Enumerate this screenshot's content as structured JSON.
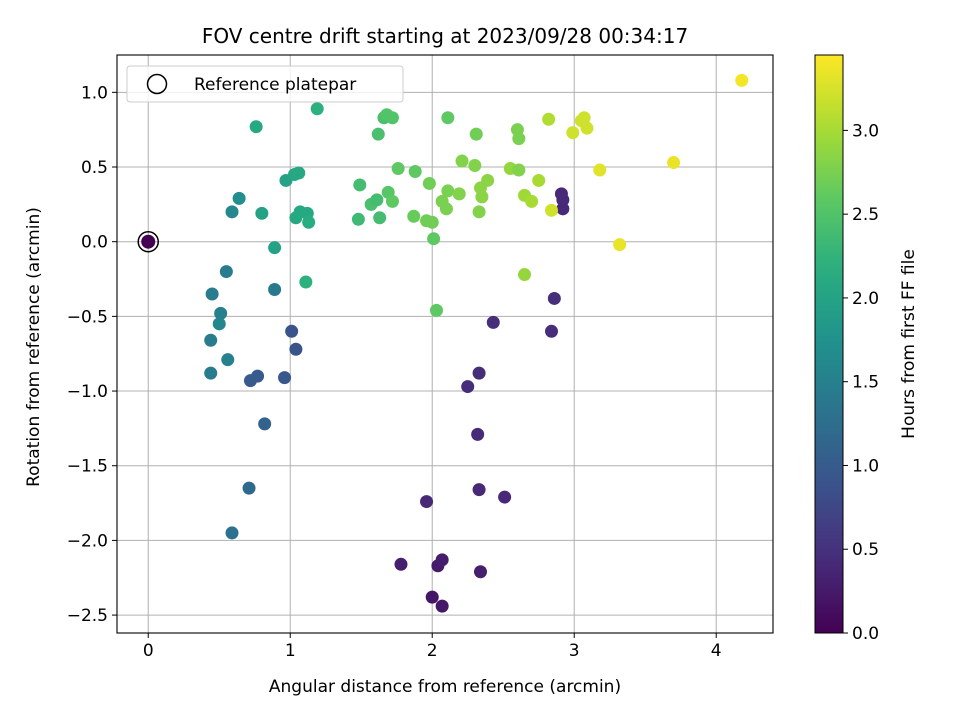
{
  "chart_data": {
    "type": "scatter",
    "title": "FOV centre drift starting at 2023/09/28 00:34:17",
    "xlabel": "Angular distance from reference (arcmin)",
    "ylabel": "Rotation from reference (arcmin)",
    "xlim": [
      -0.22,
      4.4
    ],
    "ylim": [
      -2.62,
      1.25
    ],
    "xticks": [
      0,
      1,
      2,
      3,
      4
    ],
    "yticks": [
      -2.5,
      -2.0,
      -1.5,
      -1.0,
      -0.5,
      0.0,
      0.5,
      1.0
    ],
    "grid": true,
    "legend": {
      "placement": "top-left",
      "entries": [
        "Reference platepar"
      ]
    },
    "reference_point": {
      "x": 0,
      "y": 0,
      "hours": 0
    },
    "colorbar": {
      "label": "Hours from first FF file",
      "range": [
        0,
        3.45
      ],
      "ticks": [
        0.0,
        0.5,
        1.0,
        1.5,
        2.0,
        2.5,
        3.0
      ],
      "colormap": "viridis"
    },
    "points": [
      {
        "x": 2.0,
        "y": -2.38,
        "h": 0.2
      },
      {
        "x": 2.07,
        "y": -2.44,
        "h": 0.22
      },
      {
        "x": 2.04,
        "y": -2.17,
        "h": 0.25
      },
      {
        "x": 2.07,
        "y": -2.13,
        "h": 0.27
      },
      {
        "x": 1.78,
        "y": -2.16,
        "h": 0.3
      },
      {
        "x": 2.34,
        "y": -2.21,
        "h": 0.3
      },
      {
        "x": 1.96,
        "y": -1.74,
        "h": 0.4
      },
      {
        "x": 2.33,
        "y": -1.66,
        "h": 0.4
      },
      {
        "x": 2.51,
        "y": -1.71,
        "h": 0.4
      },
      {
        "x": 2.32,
        "y": -1.29,
        "h": 0.42
      },
      {
        "x": 2.25,
        "y": -0.97,
        "h": 0.45
      },
      {
        "x": 2.33,
        "y": -0.88,
        "h": 0.45
      },
      {
        "x": 2.43,
        "y": -0.54,
        "h": 0.45
      },
      {
        "x": 2.84,
        "y": -0.6,
        "h": 0.45
      },
      {
        "x": 2.86,
        "y": -0.38,
        "h": 0.45
      },
      {
        "x": 2.91,
        "y": 0.32,
        "h": 0.4
      },
      {
        "x": 2.92,
        "y": 0.28,
        "h": 0.42
      },
      {
        "x": 2.92,
        "y": 0.22,
        "h": 0.4
      },
      {
        "x": 1.04,
        "y": -0.72,
        "h": 0.9
      },
      {
        "x": 1.01,
        "y": -0.6,
        "h": 0.9
      },
      {
        "x": 0.96,
        "y": -0.91,
        "h": 0.95
      },
      {
        "x": 0.77,
        "y": -0.9,
        "h": 1.0
      },
      {
        "x": 0.72,
        "y": -0.93,
        "h": 1.0
      },
      {
        "x": 0.82,
        "y": -1.22,
        "h": 1.1
      },
      {
        "x": 0.71,
        "y": -1.65,
        "h": 1.2
      },
      {
        "x": 0.59,
        "y": -1.95,
        "h": 1.3
      },
      {
        "x": 0.89,
        "y": -0.32,
        "h": 1.4
      },
      {
        "x": 0.56,
        "y": -0.79,
        "h": 1.5
      },
      {
        "x": 0.44,
        "y": -0.88,
        "h": 1.45
      },
      {
        "x": 0.44,
        "y": -0.66,
        "h": 1.45
      },
      {
        "x": 0.5,
        "y": -0.55,
        "h": 1.6
      },
      {
        "x": 0.51,
        "y": -0.48,
        "h": 1.5
      },
      {
        "x": 0.45,
        "y": -0.35,
        "h": 1.45
      },
      {
        "x": 0.55,
        "y": -0.2,
        "h": 1.45
      },
      {
        "x": 0.59,
        "y": 0.2,
        "h": 1.6
      },
      {
        "x": 0.64,
        "y": 0.29,
        "h": 1.7
      },
      {
        "x": 0.8,
        "y": 0.19,
        "h": 2.0
      },
      {
        "x": 0.89,
        "y": -0.04,
        "h": 2.0
      },
      {
        "x": 0.97,
        "y": 0.41,
        "h": 2.0
      },
      {
        "x": 1.03,
        "y": 0.45,
        "h": 2.05
      },
      {
        "x": 1.06,
        "y": 0.46,
        "h": 2.1
      },
      {
        "x": 1.04,
        "y": 0.16,
        "h": 2.1
      },
      {
        "x": 1.07,
        "y": 0.2,
        "h": 2.1
      },
      {
        "x": 1.12,
        "y": 0.19,
        "h": 2.1
      },
      {
        "x": 1.13,
        "y": 0.13,
        "h": 2.15
      },
      {
        "x": 1.11,
        "y": -0.27,
        "h": 2.2
      },
      {
        "x": 0.76,
        "y": 0.77,
        "h": 2.1
      },
      {
        "x": 1.19,
        "y": 0.89,
        "h": 2.2
      },
      {
        "x": 1.48,
        "y": 0.15,
        "h": 2.35
      },
      {
        "x": 1.49,
        "y": 0.38,
        "h": 2.4
      },
      {
        "x": 1.57,
        "y": 0.25,
        "h": 2.45
      },
      {
        "x": 1.61,
        "y": 0.28,
        "h": 2.4
      },
      {
        "x": 1.63,
        "y": 0.16,
        "h": 2.4
      },
      {
        "x": 1.62,
        "y": 0.72,
        "h": 2.45
      },
      {
        "x": 1.66,
        "y": 0.83,
        "h": 2.45
      },
      {
        "x": 1.68,
        "y": 0.85,
        "h": 2.5
      },
      {
        "x": 1.72,
        "y": 0.83,
        "h": 2.5
      },
      {
        "x": 1.69,
        "y": 0.33,
        "h": 2.55
      },
      {
        "x": 1.72,
        "y": 0.27,
        "h": 2.6
      },
      {
        "x": 1.76,
        "y": 0.49,
        "h": 2.6
      },
      {
        "x": 1.87,
        "y": 0.17,
        "h": 2.65
      },
      {
        "x": 1.88,
        "y": 0.47,
        "h": 2.6
      },
      {
        "x": 1.96,
        "y": 0.14,
        "h": 2.7
      },
      {
        "x": 1.98,
        "y": 0.39,
        "h": 2.7
      },
      {
        "x": 2.0,
        "y": 0.13,
        "h": 2.7
      },
      {
        "x": 2.01,
        "y": 0.02,
        "h": 2.6
      },
      {
        "x": 2.03,
        "y": -0.46,
        "h": 2.6
      },
      {
        "x": 2.07,
        "y": 0.27,
        "h": 2.75
      },
      {
        "x": 2.1,
        "y": 0.22,
        "h": 2.75
      },
      {
        "x": 2.11,
        "y": 0.34,
        "h": 2.75
      },
      {
        "x": 2.11,
        "y": 0.83,
        "h": 2.6
      },
      {
        "x": 2.19,
        "y": 0.32,
        "h": 2.8
      },
      {
        "x": 2.21,
        "y": 0.54,
        "h": 2.8
      },
      {
        "x": 2.3,
        "y": 0.51,
        "h": 2.8
      },
      {
        "x": 2.31,
        "y": 0.72,
        "h": 2.7
      },
      {
        "x": 2.33,
        "y": 0.2,
        "h": 2.8
      },
      {
        "x": 2.34,
        "y": 0.36,
        "h": 2.85
      },
      {
        "x": 2.35,
        "y": 0.3,
        "h": 2.85
      },
      {
        "x": 2.39,
        "y": 0.41,
        "h": 2.85
      },
      {
        "x": 2.55,
        "y": 0.49,
        "h": 2.9
      },
      {
        "x": 2.6,
        "y": 0.75,
        "h": 2.75
      },
      {
        "x": 2.61,
        "y": 0.69,
        "h": 2.75
      },
      {
        "x": 2.61,
        "y": 0.48,
        "h": 2.8
      },
      {
        "x": 2.65,
        "y": 0.31,
        "h": 2.95
      },
      {
        "x": 2.65,
        "y": -0.22,
        "h": 2.9
      },
      {
        "x": 2.7,
        "y": 0.27,
        "h": 3.0
      },
      {
        "x": 2.75,
        "y": 0.41,
        "h": 3.0
      },
      {
        "x": 2.82,
        "y": 0.82,
        "h": 3.05
      },
      {
        "x": 2.84,
        "y": 0.21,
        "h": 3.2
      },
      {
        "x": 2.99,
        "y": 0.73,
        "h": 3.2
      },
      {
        "x": 3.05,
        "y": 0.81,
        "h": 3.2
      },
      {
        "x": 3.07,
        "y": 0.83,
        "h": 3.2
      },
      {
        "x": 3.09,
        "y": 0.76,
        "h": 3.2
      },
      {
        "x": 3.18,
        "y": 0.48,
        "h": 3.3
      },
      {
        "x": 3.32,
        "y": -0.02,
        "h": 3.35
      },
      {
        "x": 3.7,
        "y": 0.53,
        "h": 3.35
      },
      {
        "x": 4.18,
        "y": 1.08,
        "h": 3.4
      }
    ]
  }
}
